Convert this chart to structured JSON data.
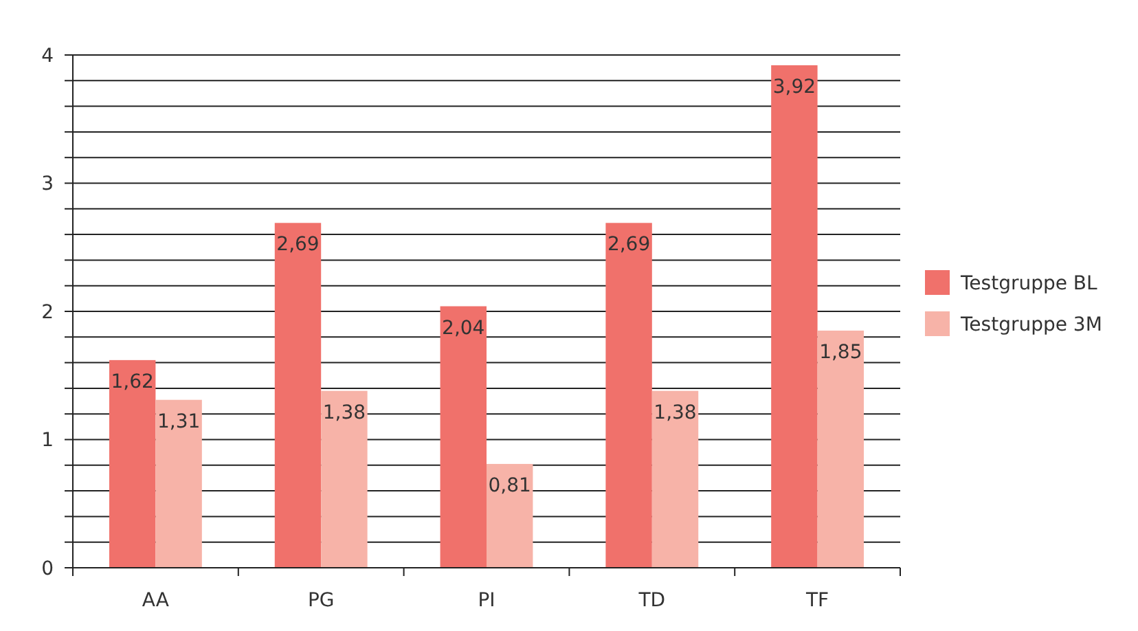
{
  "chart_data": {
    "type": "bar",
    "categories": [
      "AA",
      "PG",
      "PI",
      "TD",
      "TF"
    ],
    "series": [
      {
        "name": "Testgruppe BL",
        "color": "#f0716b",
        "values": [
          1.62,
          2.69,
          2.04,
          2.69,
          3.92
        ],
        "value_labels": [
          "1,62",
          "2,69",
          "2,04",
          "2,69",
          "3,92"
        ]
      },
      {
        "name": "Testgruppe 3M",
        "color": "#f7b3a8",
        "values": [
          1.31,
          1.38,
          0.81,
          1.38,
          1.85
        ],
        "value_labels": [
          "1,31",
          "1,38",
          "0,81",
          "1,38",
          "1,85"
        ]
      }
    ],
    "ylim": [
      0,
      4
    ],
    "yticks": [
      0,
      {
        "value": 0.2,
        "label": null
      },
      {
        "value": 0.4,
        "label": null
      },
      {
        "value": 0.6,
        "label": null
      },
      {
        "value": 0.8,
        "label": null
      },
      1,
      {
        "value": 1.2,
        "label": null
      },
      {
        "value": 1.4,
        "label": null
      },
      {
        "value": 1.6,
        "label": null
      },
      {
        "value": 1.8,
        "label": null
      },
      2,
      {
        "value": 2.2,
        "label": null
      },
      {
        "value": 2.4,
        "label": null
      },
      {
        "value": 2.6,
        "label": null
      },
      {
        "value": 2.8,
        "label": null
      },
      3,
      {
        "value": 3.2,
        "label": null
      },
      {
        "value": 3.4,
        "label": null
      },
      {
        "value": 3.6,
        "label": null
      },
      {
        "value": 3.8,
        "label": null
      },
      4
    ],
    "grid": "y",
    "legend": "right"
  }
}
